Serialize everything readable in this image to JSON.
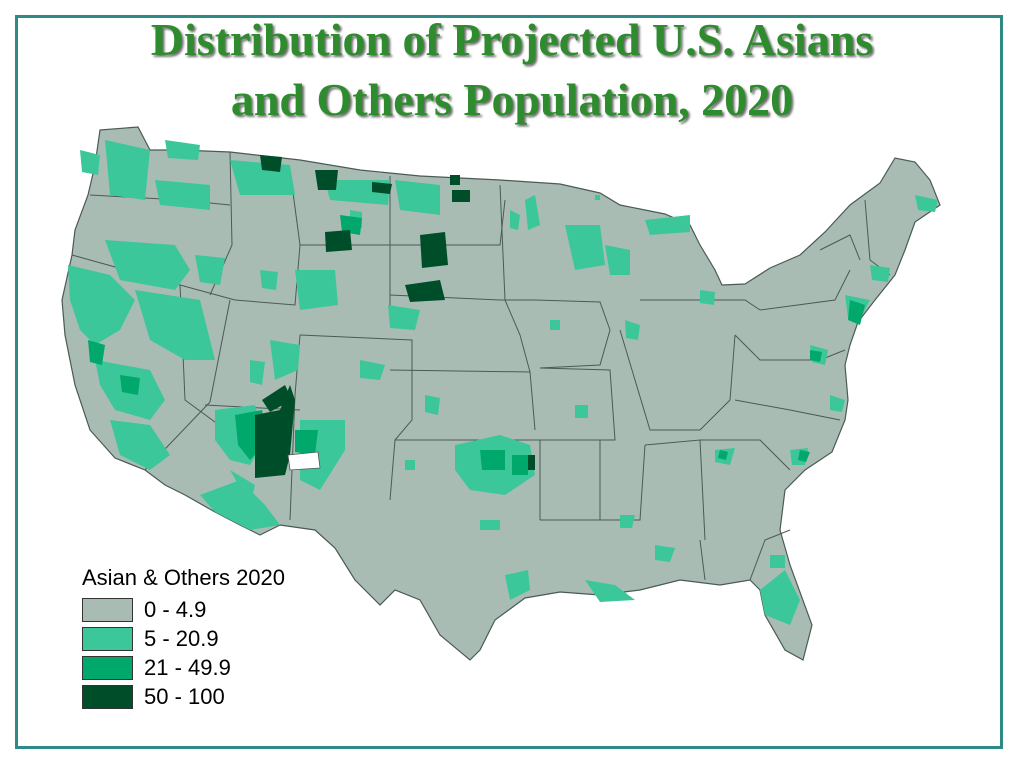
{
  "title": {
    "line1": "Distribution of Projected U.S. Asians",
    "line2": "and Others Population, 2020"
  },
  "legend": {
    "title": "Asian & Others 2020",
    "classes": [
      {
        "label": "0 - 4.9",
        "color": "#a8bcb4"
      },
      {
        "label": "5 - 20.9",
        "color": "#3cc79a"
      },
      {
        "label": "21 - 49.9",
        "color": "#00a86b"
      },
      {
        "label": "50 - 100",
        "color": "#004d2a"
      }
    ]
  },
  "colors": {
    "frame": "#2d8a87",
    "title_text": "#2e8b2e",
    "boundary": "#4a5a55",
    "no_data": "#ffffff"
  },
  "map": {
    "subject": "Contiguous United States by county",
    "variable": "Asian & Others 2020"
  }
}
